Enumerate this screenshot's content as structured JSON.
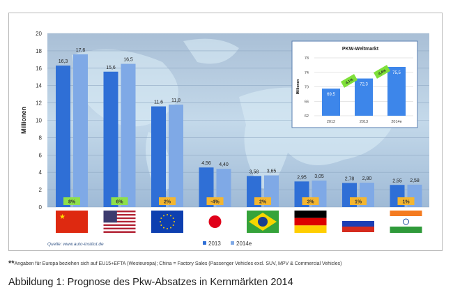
{
  "chart_data": {
    "type": "bar",
    "ylabel": "Millionen",
    "ylim": [
      0,
      20
    ],
    "yticks": [
      0,
      2,
      4,
      6,
      8,
      10,
      12,
      14,
      16,
      18,
      20
    ],
    "categories": [
      "China",
      "USA",
      "Europa",
      "Japan",
      "Brasilien",
      "Deutschland",
      "Russland",
      "Indien"
    ],
    "flags": [
      "china-flag",
      "usa-flag",
      "eu-flag",
      "japan-flag",
      "brazil-flag",
      "germany-flag",
      "russia-flag",
      "india-flag"
    ],
    "series": [
      {
        "name": "2013",
        "color": "#2f6fd6",
        "values": [
          16.3,
          15.6,
          11.6,
          4.56,
          3.58,
          2.95,
          2.78,
          2.55
        ],
        "labels": [
          "16,3",
          "15,6",
          "11,6",
          "4,56",
          "3,58",
          "2,95",
          "2,78",
          "2,55"
        ]
      },
      {
        "name": "2014e",
        "color": "#7fa9e6",
        "values": [
          17.6,
          16.5,
          11.8,
          4.4,
          3.65,
          3.05,
          2.8,
          2.58
        ],
        "labels": [
          "17,6",
          "16,5",
          "11,8",
          "4,40",
          "3,65",
          "3,05",
          "2,80",
          "2,58"
        ]
      }
    ],
    "growth": [
      "8%",
      "6%",
      "2%",
      "-4%",
      "2%",
      "3%",
      "1%",
      "1%"
    ],
    "growth_colors": [
      "#8ee04a",
      "#8ee04a",
      "#f4b630",
      "#f4b630",
      "#f4b630",
      "#f4b630",
      "#f4b630",
      "#f4b630"
    ],
    "source": "Quelle: www.auto-institut.de",
    "inset": {
      "title": "PKW-Weltmarkt",
      "ylabel": "Millionen",
      "ylim": [
        62,
        78
      ],
      "yticks": [
        62,
        66,
        70,
        74,
        78
      ],
      "categories": [
        "2012",
        "2013",
        "2014e"
      ],
      "values": [
        69.5,
        72.3,
        75.5
      ],
      "labels": [
        "69,5",
        "72,3",
        "75,5"
      ],
      "growth": [
        "4,1%",
        "4,4%"
      ]
    }
  },
  "footnote_mark": "**",
  "footnote": "Angaben für Europa beziehen sich auf EU15+EFTA (Westeuropa); China = Factory Sales (Passenger Vehicles excl. SUV, MPV & Commercial Vehicles)",
  "caption": "Abbildung 1: Prognose des Pkw-Absatzes in Kernmärkten 2014"
}
